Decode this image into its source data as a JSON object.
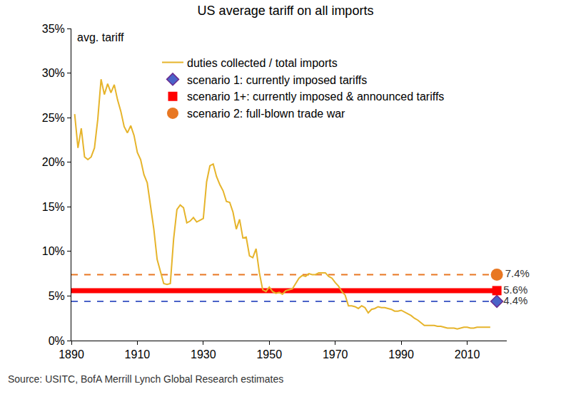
{
  "chart_data": {
    "type": "line",
    "title": "US average tariff on all imports",
    "ylabel": "avg. tariff",
    "source": "Source: USITC, BofA Merrill Lynch Global Research estimates",
    "xlim": [
      1890,
      2022
    ],
    "xticks": [
      1890,
      1910,
      1930,
      1950,
      1970,
      1990,
      2010
    ],
    "ylim": [
      0,
      35
    ],
    "yticks": [
      {
        "value": 0,
        "label": "0%"
      },
      {
        "value": 5,
        "label": "5%"
      },
      {
        "value": 10,
        "label": "10%"
      },
      {
        "value": 15,
        "label": "15%"
      },
      {
        "value": 20,
        "label": "20%"
      },
      {
        "value": 25,
        "label": "25%"
      },
      {
        "value": 30,
        "label": "30%"
      },
      {
        "value": 35,
        "label": "35%"
      }
    ],
    "grid": false,
    "legend": "top",
    "series": [
      {
        "name": "duties collected / total imports",
        "type": "line",
        "color": "#e6b42b",
        "line_style": "solid",
        "x": [
          1891,
          1892,
          1893,
          1894,
          1895,
          1896,
          1897,
          1898,
          1899,
          1900,
          1901,
          1902,
          1903,
          1904,
          1905,
          1906,
          1907,
          1908,
          1909,
          1910,
          1911,
          1912,
          1913,
          1914,
          1915,
          1916,
          1917,
          1918,
          1919,
          1920,
          1921,
          1922,
          1923,
          1924,
          1925,
          1926,
          1927,
          1928,
          1929,
          1930,
          1931,
          1932,
          1933,
          1934,
          1935,
          1936,
          1937,
          1938,
          1939,
          1940,
          1941,
          1942,
          1943,
          1944,
          1945,
          1946,
          1947,
          1948,
          1949,
          1950,
          1951,
          1952,
          1953,
          1954,
          1955,
          1956,
          1957,
          1958,
          1959,
          1960,
          1961,
          1962,
          1963,
          1964,
          1965,
          1966,
          1967,
          1968,
          1969,
          1970,
          1971,
          1972,
          1973,
          1974,
          1975,
          1976,
          1977,
          1978,
          1979,
          1980,
          1981,
          1982,
          1983,
          1984,
          1985,
          1986,
          1987,
          1988,
          1989,
          1990,
          1991,
          1992,
          1993,
          1994,
          1995,
          1996,
          1997,
          1998,
          1999,
          2000,
          2001,
          2002,
          2003,
          2004,
          2005,
          2006,
          2007,
          2008,
          2009,
          2010,
          2011,
          2012,
          2013,
          2014,
          2015,
          2016,
          2017
        ],
        "values": [
          25.4,
          21.6,
          23.8,
          20.6,
          20.3,
          20.6,
          21.6,
          24.8,
          29.3,
          27.6,
          28.8,
          27.8,
          28.7,
          27.0,
          25.7,
          24.0,
          23.3,
          24.1,
          23.0,
          21.1,
          20.3,
          18.6,
          17.7,
          14.9,
          12.5,
          9.1,
          7.7,
          6.4,
          6.3,
          6.4,
          11.4,
          14.7,
          15.2,
          14.9,
          13.2,
          13.4,
          13.8,
          13.3,
          13.5,
          13.7,
          17.8,
          19.6,
          19.8,
          18.4,
          17.5,
          16.8,
          15.6,
          15.5,
          14.4,
          12.5,
          13.6,
          11.5,
          11.6,
          9.5,
          9.3,
          10.3,
          7.6,
          5.7,
          5.5,
          6.0,
          5.5,
          5.3,
          5.4,
          5.2,
          5.6,
          5.7,
          5.8,
          6.4,
          7.0,
          7.3,
          7.2,
          7.5,
          7.4,
          7.4,
          7.6,
          7.6,
          7.6,
          7.2,
          7.0,
          6.5,
          6.1,
          5.5,
          5.1,
          3.9,
          3.9,
          3.8,
          3.6,
          3.9,
          3.7,
          3.1,
          3.5,
          3.6,
          3.8,
          3.7,
          3.7,
          3.6,
          3.5,
          3.3,
          3.3,
          3.4,
          3.2,
          3.0,
          2.8,
          2.5,
          2.3,
          2.0,
          1.7,
          1.7,
          1.7,
          1.7,
          1.6,
          1.6,
          1.5,
          1.4,
          1.4,
          1.4,
          1.3,
          1.4,
          1.5,
          1.5,
          1.4,
          1.4,
          1.5,
          1.5,
          1.5,
          1.5,
          1.5
        ]
      },
      {
        "name": "scenario 1: currently imposed tariffs",
        "type": "scatter",
        "color": "#4a63c8",
        "marker": "diamond",
        "line_style": "dash",
        "data_labels": true,
        "x": [
          2019
        ],
        "values": [
          4.4
        ],
        "value_labels": [
          "4.4%"
        ]
      },
      {
        "name": "scenario 1+: currently imposed & announced tariffs",
        "type": "scatter",
        "color": "#ff0000",
        "marker": "square",
        "line_style": "solid",
        "data_labels": true,
        "x": [
          2019
        ],
        "values": [
          5.6
        ],
        "value_labels": [
          "5.6%"
        ]
      },
      {
        "name": "scenario 2: full-blown trade war",
        "type": "scatter",
        "color": "#e87722",
        "marker": "circle",
        "line_style": "dash",
        "data_labels": true,
        "x": [
          2019
        ],
        "values": [
          7.4
        ],
        "value_labels": [
          "7.4%"
        ]
      }
    ]
  }
}
